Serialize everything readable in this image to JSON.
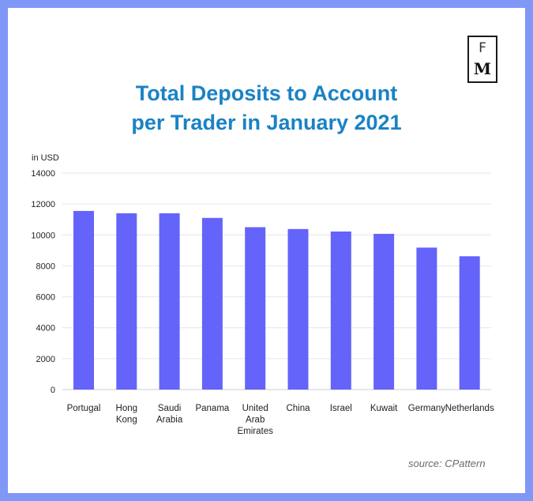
{
  "logo": {
    "top": "F",
    "bottom": "M"
  },
  "title": {
    "line1": "Total Deposits to Account",
    "line2": "per Trader in January 2021"
  },
  "source": "source: CPattern",
  "colors": {
    "bar": "#6464fa",
    "title": "#1a82c4",
    "border": "#7f97f7"
  },
  "chart_data": {
    "type": "bar",
    "title": "Total Deposits to Account per Trader in January 2021",
    "ylabel": "in USD",
    "xlabel": "",
    "ylim": [
      0,
      14000
    ],
    "yticks": [
      0,
      2000,
      4000,
      6000,
      8000,
      10000,
      12000,
      14000
    ],
    "grid": true,
    "categories": [
      [
        "Portugal"
      ],
      [
        "Hong",
        "Kong"
      ],
      [
        "Saudi",
        "Arabia"
      ],
      [
        "Panama"
      ],
      [
        "United",
        "Arab",
        "Emirates"
      ],
      [
        "China"
      ],
      [
        "Israel"
      ],
      [
        "Kuwait"
      ],
      [
        "Germany"
      ],
      [
        "Netherlands"
      ]
    ],
    "values": [
      11550,
      11400,
      11400,
      11100,
      10500,
      10380,
      10220,
      10070,
      9180,
      8620
    ]
  }
}
